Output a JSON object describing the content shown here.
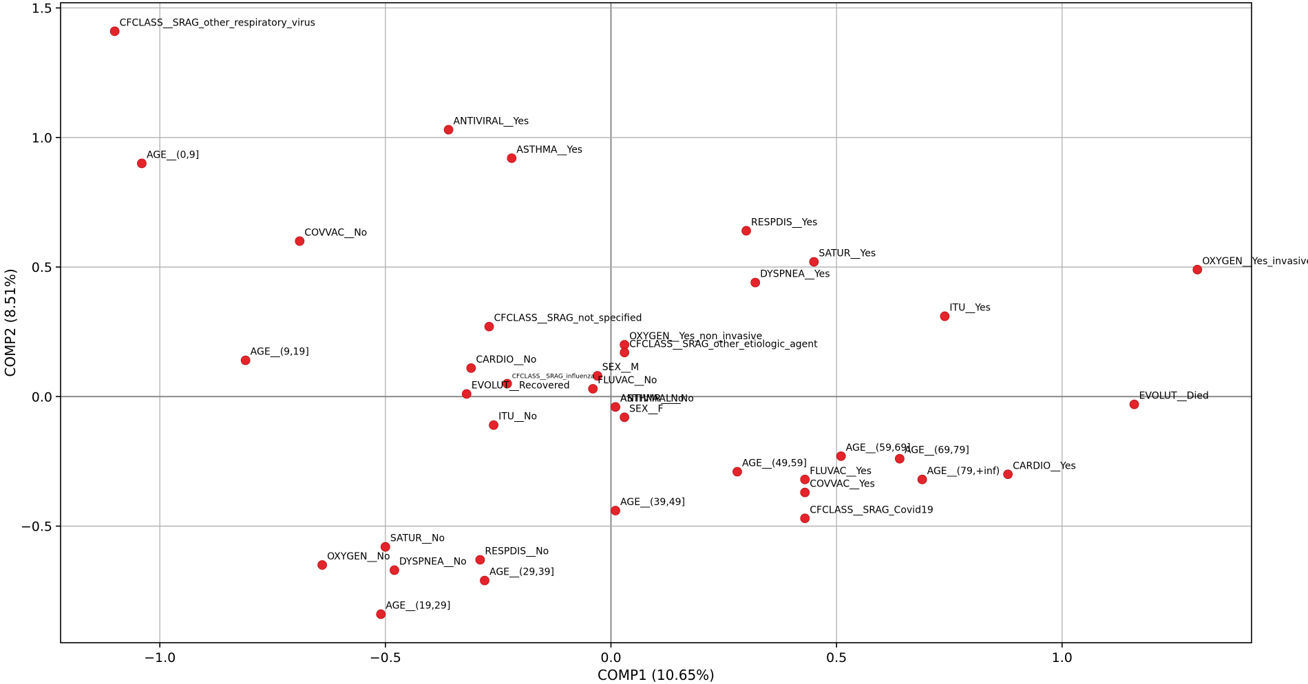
{
  "chart_data": {
    "type": "scatter",
    "title": "",
    "xlabel": "COMP1 (10.65%)",
    "ylabel": "COMP2 (8.51%)",
    "xlim": [
      -1.22,
      1.42
    ],
    "ylim": [
      -0.95,
      1.52
    ],
    "xticks": [
      -1.0,
      -0.5,
      0.0,
      0.5,
      1.0
    ],
    "xtick_labels": [
      "−1.0",
      "−0.5",
      "0.0",
      "0.5",
      "1.0"
    ],
    "yticks": [
      -0.5,
      0.0,
      0.5,
      1.0,
      1.5
    ],
    "ytick_labels": [
      "−0.5",
      "0.0",
      "0.5",
      "1.0",
      "1.5"
    ],
    "grid": true,
    "marker_color": "#e3242b",
    "points": [
      {
        "label": "CFCLASS__SRAG_other_respiratory_virus",
        "x": -1.1,
        "y": 1.41
      },
      {
        "label": "ANTIVIRAL__Yes",
        "x": -0.36,
        "y": 1.03
      },
      {
        "label": "ASTHMA__Yes",
        "x": -0.22,
        "y": 0.92
      },
      {
        "label": "AGE__(0,9]",
        "x": -1.04,
        "y": 0.9
      },
      {
        "label": "COVVAC__No",
        "x": -0.69,
        "y": 0.6
      },
      {
        "label": "RESPDIS__Yes",
        "x": 0.3,
        "y": 0.64
      },
      {
        "label": "SATUR__Yes",
        "x": 0.45,
        "y": 0.52
      },
      {
        "label": "DYSPNEA__Yes",
        "x": 0.32,
        "y": 0.44
      },
      {
        "label": "OXYGEN__Yes_invasive",
        "x": 1.3,
        "y": 0.49
      },
      {
        "label": "ITU__Yes",
        "x": 0.74,
        "y": 0.31
      },
      {
        "label": "CFCLASS__SRAG_not_specified",
        "x": -0.27,
        "y": 0.27
      },
      {
        "label": "OXYGEN__Yes_non_invasive",
        "x": 0.03,
        "y": 0.2
      },
      {
        "label": "CFCLASS__SRAG_other_etiologic_agent",
        "x": 0.03,
        "y": 0.17
      },
      {
        "label": "AGE__(9,19]",
        "x": -0.81,
        "y": 0.14
      },
      {
        "label": "CARDIO__No",
        "x": -0.31,
        "y": 0.11
      },
      {
        "label": "SEX__M",
        "x": -0.03,
        "y": 0.08
      },
      {
        "label": "CFCLASS__SRAG_influenza",
        "x": -0.23,
        "y": 0.05,
        "small": true
      },
      {
        "label": "FLUVAC__No",
        "x": -0.04,
        "y": 0.03
      },
      {
        "label": "EVOLUT__Recovered",
        "x": -0.32,
        "y": 0.01
      },
      {
        "label": "EVOLUT__Died",
        "x": 1.16,
        "y": -0.03
      },
      {
        "label": "ANTIVIAAL__No",
        "x": 0.01,
        "y": -0.04
      },
      {
        "label": "ASTHMR__No",
        "x": 0.01,
        "y": -0.04
      },
      {
        "label": "SEX__F",
        "x": 0.03,
        "y": -0.08
      },
      {
        "label": "ITU__No",
        "x": -0.26,
        "y": -0.11
      },
      {
        "label": "AGE__(59,69]",
        "x": 0.51,
        "y": -0.23
      },
      {
        "label": "AGE__(69,79]",
        "x": 0.64,
        "y": -0.24
      },
      {
        "label": "AGE__(49,59]",
        "x": 0.28,
        "y": -0.29
      },
      {
        "label": "FLUVAC__Yes",
        "x": 0.43,
        "y": -0.32
      },
      {
        "label": "AGE__(79,+inf)",
        "x": 0.69,
        "y": -0.32
      },
      {
        "label": "CARDIO__Yes",
        "x": 0.88,
        "y": -0.3
      },
      {
        "label": "COVVAC__Yes",
        "x": 0.43,
        "y": -0.37
      },
      {
        "label": "AGE__(39,49]",
        "x": 0.01,
        "y": -0.44
      },
      {
        "label": "CFCLASS__SRAG_Covid19",
        "x": 0.43,
        "y": -0.47
      },
      {
        "label": "SATUR__No",
        "x": -0.5,
        "y": -0.58
      },
      {
        "label": "RESPDIS__No",
        "x": -0.29,
        "y": -0.63
      },
      {
        "label": "OXYGEN__No",
        "x": -0.64,
        "y": -0.65
      },
      {
        "label": "DYSPNEA__No",
        "x": -0.48,
        "y": -0.67
      },
      {
        "label": "AGE__(29,39]",
        "x": -0.28,
        "y": -0.71
      },
      {
        "label": "AGE__(19,29]",
        "x": -0.51,
        "y": -0.84
      }
    ]
  }
}
